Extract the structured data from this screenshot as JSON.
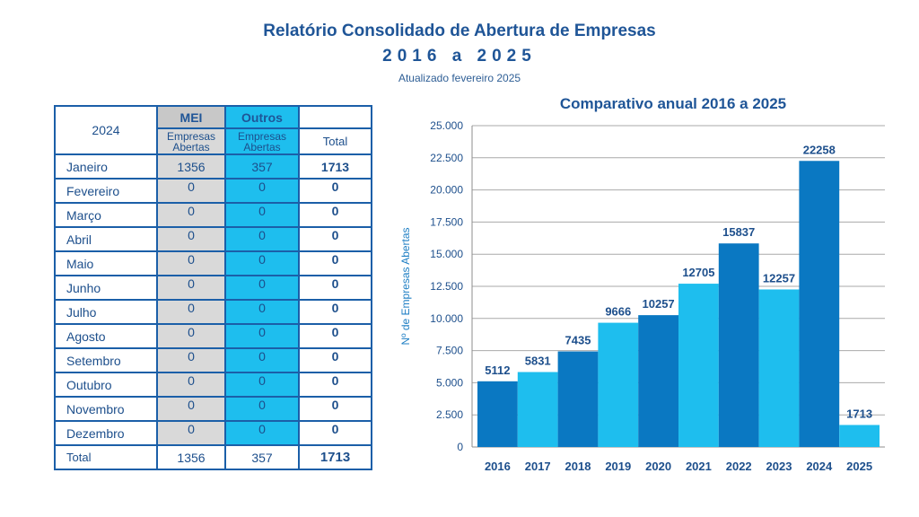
{
  "header": {
    "title": "Relatório Consolidado de Abertura de Empresas",
    "years": "2016 a 2025",
    "updated": "Atualizado fevereiro 2025"
  },
  "table": {
    "year": "2024",
    "mei_label": "MEI",
    "outros_label": "Outros",
    "sub_line1": "Empresas",
    "sub_line2": "Abertas",
    "total_label": "Total",
    "rows": [
      {
        "month": "Janeiro",
        "mei": "1356",
        "outros": "357",
        "total": "1713"
      },
      {
        "month": "Fevereiro",
        "mei": "0",
        "outros": "0",
        "total": "0"
      },
      {
        "month": "Março",
        "mei": "0",
        "outros": "0",
        "total": "0"
      },
      {
        "month": "Abril",
        "mei": "0",
        "outros": "0",
        "total": "0"
      },
      {
        "month": "Maio",
        "mei": "0",
        "outros": "0",
        "total": "0"
      },
      {
        "month": "Junho",
        "mei": "0",
        "outros": "0",
        "total": "0"
      },
      {
        "month": "Julho",
        "mei": "0",
        "outros": "0",
        "total": "0"
      },
      {
        "month": "Agosto",
        "mei": "0",
        "outros": "0",
        "total": "0"
      },
      {
        "month": "Setembro",
        "mei": "0",
        "outros": "0",
        "total": "0"
      },
      {
        "month": "Outubro",
        "mei": "0",
        "outros": "0",
        "total": "0"
      },
      {
        "month": "Novembro",
        "mei": "0",
        "outros": "0",
        "total": "0"
      },
      {
        "month": "Dezembro",
        "mei": "0",
        "outros": "0",
        "total": "0"
      }
    ],
    "totals": {
      "label": "Total",
      "mei": "1356",
      "outros": "357",
      "total": "1713"
    }
  },
  "chart_data": {
    "type": "bar",
    "title": "Comparativo anual 2016 a 2025",
    "ylabel": "Nº de Empresas Abertas",
    "categories": [
      "2016",
      "2017",
      "2018",
      "2019",
      "2020",
      "2021",
      "2022",
      "2023",
      "2024",
      "2025"
    ],
    "values": [
      5112,
      5831,
      7435,
      9666,
      10257,
      12705,
      15837,
      12257,
      22258,
      1713
    ],
    "ylim": [
      0,
      25000
    ],
    "yticks": [
      0,
      2500,
      5000,
      7500,
      10000,
      12500,
      15000,
      17500,
      20000,
      22500,
      25000
    ],
    "ytick_labels": [
      "0",
      "2.500",
      "5.000",
      "7.500",
      "10.000",
      "12.500",
      "15.000",
      "17.500",
      "20.000",
      "22.500",
      "25.000"
    ],
    "grid": true,
    "colors": [
      "#0a78c2",
      "#1ebeee"
    ]
  }
}
